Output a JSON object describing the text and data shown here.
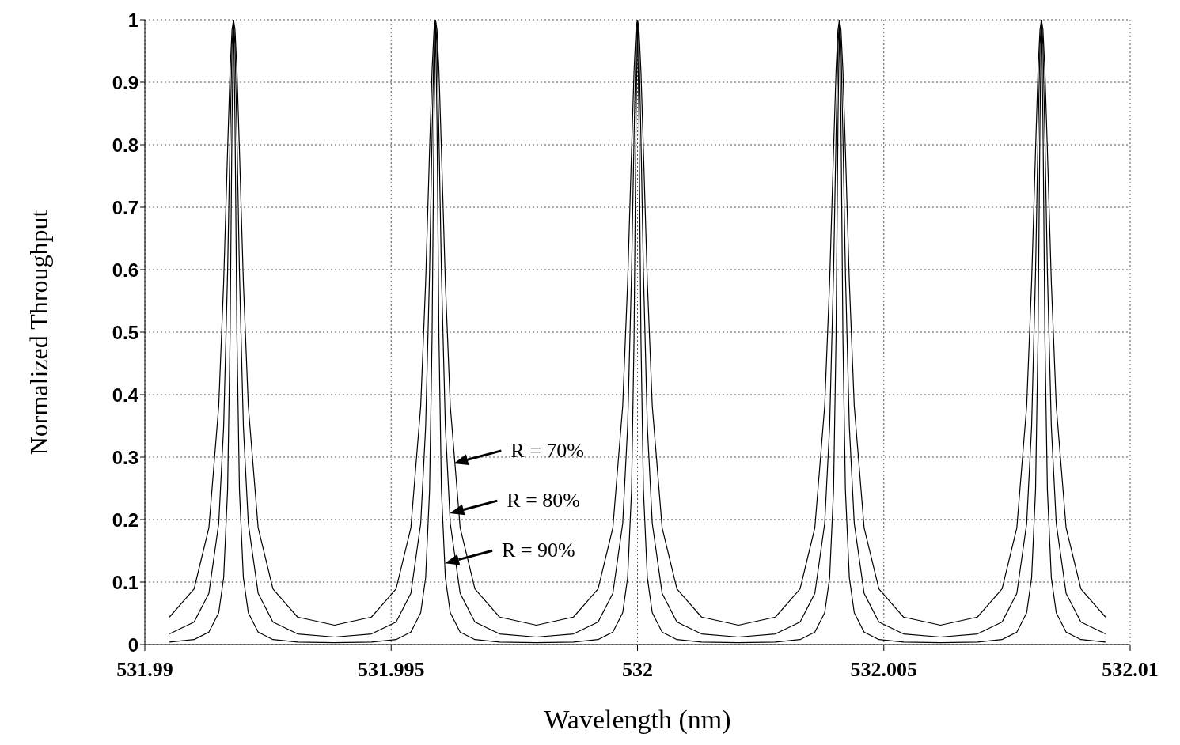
{
  "chart_data": {
    "type": "line",
    "xlabel": "Wavelength (nm)",
    "ylabel": "Normalized Throughput",
    "x": [
      531.9905,
      531.991,
      531.9913,
      531.9915,
      531.9916,
      531.99168,
      531.99173,
      531.99177,
      531.9918,
      531.99183,
      531.99187,
      531.99192,
      531.992,
      531.9921,
      531.9923,
      531.9926,
      531.9931,
      531.99385,
      531.9946,
      531.9951,
      531.9954,
      531.9956,
      531.9957,
      531.99578,
      531.99583,
      531.99587,
      531.9959,
      531.99593,
      531.99597,
      531.99602,
      531.9961,
      531.9962,
      531.9964,
      531.9967,
      531.9972,
      531.99795,
      531.9987,
      531.9992,
      531.9995,
      531.9997,
      531.9998,
      531.99988,
      531.99993,
      531.99997,
      532,
      532.00003,
      532.00007,
      532.00012,
      532.0002,
      532.0003,
      532.0005,
      532.0008,
      532.0013,
      532.00205,
      532.0028,
      532.0033,
      532.0036,
      532.0038,
      532.0039,
      532.00398,
      532.00403,
      532.00407,
      532.0041,
      532.00413,
      532.00417,
      532.00422,
      532.0043,
      532.0044,
      532.0046,
      532.0049,
      532.0054,
      532.00615,
      532.0069,
      532.0074,
      532.0077,
      532.0079,
      532.008,
      532.00808,
      532.00813,
      532.00817,
      532.0082,
      532.00823,
      532.00827,
      532.00832,
      532.0084,
      532.0085,
      532.0087,
      532.009,
      532.0095
    ],
    "series": [
      {
        "color": "#000000",
        "values": [
          0.044,
          0.089,
          0.187,
          0.382,
          0.58,
          0.792,
          0.918,
          0.984,
          1,
          0.984,
          0.918,
          0.792,
          0.58,
          0.382,
          0.187,
          0.089,
          0.044,
          0.031,
          0.044,
          0.089,
          0.187,
          0.382,
          0.58,
          0.792,
          0.918,
          0.984,
          1,
          0.984,
          0.918,
          0.792,
          0.58,
          0.382,
          0.187,
          0.089,
          0.044,
          0.031,
          0.044,
          0.089,
          0.187,
          0.382,
          0.58,
          0.792,
          0.918,
          0.984,
          1,
          0.984,
          0.918,
          0.792,
          0.58,
          0.382,
          0.187,
          0.089,
          0.044,
          0.031,
          0.044,
          0.089,
          0.187,
          0.382,
          0.58,
          0.792,
          0.918,
          0.984,
          1,
          0.984,
          0.918,
          0.792,
          0.58,
          0.382,
          0.187,
          0.089,
          0.044,
          0.031,
          0.044,
          0.089,
          0.187,
          0.382,
          0.58,
          0.792,
          0.918,
          0.984,
          1,
          0.984,
          0.918,
          0.792,
          0.58,
          0.382,
          0.187,
          0.089,
          0.044
        ]
      },
      {
        "color": "#000000",
        "values": [
          0.017,
          0.036,
          0.082,
          0.194,
          0.349,
          0.597,
          0.813,
          0.96,
          1,
          0.96,
          0.813,
          0.597,
          0.349,
          0.194,
          0.082,
          0.036,
          0.017,
          0.012,
          0.017,
          0.036,
          0.082,
          0.194,
          0.349,
          0.597,
          0.813,
          0.96,
          1,
          0.96,
          0.813,
          0.597,
          0.349,
          0.194,
          0.082,
          0.036,
          0.017,
          0.012,
          0.017,
          0.036,
          0.082,
          0.194,
          0.349,
          0.597,
          0.813,
          0.96,
          1,
          0.96,
          0.813,
          0.597,
          0.349,
          0.194,
          0.082,
          0.036,
          0.017,
          0.012,
          0.017,
          0.036,
          0.082,
          0.194,
          0.349,
          0.597,
          0.813,
          0.96,
          1,
          0.96,
          0.813,
          0.597,
          0.349,
          0.194,
          0.082,
          0.036,
          0.017,
          0.012,
          0.017,
          0.036,
          0.082,
          0.194,
          0.349,
          0.597,
          0.813,
          0.96,
          1,
          0.96,
          0.813,
          0.597,
          0.349,
          0.194,
          0.082,
          0.036,
          0.017
        ]
      },
      {
        "color": "#000000",
        "values": [
          0.004,
          0.008,
          0.02,
          0.051,
          0.107,
          0.248,
          0.491,
          0.84,
          1,
          0.84,
          0.491,
          0.248,
          0.107,
          0.051,
          0.02,
          0.008,
          0.004,
          0.003,
          0.004,
          0.008,
          0.02,
          0.051,
          0.107,
          0.248,
          0.491,
          0.84,
          1,
          0.84,
          0.491,
          0.248,
          0.107,
          0.051,
          0.02,
          0.008,
          0.004,
          0.003,
          0.004,
          0.008,
          0.02,
          0.051,
          0.107,
          0.248,
          0.491,
          0.84,
          1,
          0.84,
          0.491,
          0.248,
          0.107,
          0.051,
          0.02,
          0.008,
          0.004,
          0.003,
          0.004,
          0.008,
          0.02,
          0.051,
          0.107,
          0.248,
          0.491,
          0.84,
          1,
          0.84,
          0.491,
          0.248,
          0.107,
          0.051,
          0.02,
          0.008,
          0.004,
          0.003,
          0.004,
          0.008,
          0.02,
          0.051,
          0.107,
          0.248,
          0.491,
          0.84,
          1,
          0.84,
          0.491,
          0.248,
          0.107,
          0.051,
          0.02,
          0.008,
          0.004
        ]
      }
    ],
    "xlim": [
      531.99,
      532.01
    ],
    "xticks": [
      531.99,
      531.995,
      532,
      532.005,
      532.01
    ],
    "ylim": [
      0,
      1
    ],
    "yticks": [
      0,
      0.1,
      0.2,
      0.3,
      0.4,
      0.5,
      0.6,
      0.7,
      0.8,
      0.9,
      1
    ],
    "grid": true,
    "marker": "none",
    "line_style": "solid",
    "annotations": [
      {
        "text": "R = 70%",
        "x": 531.99627,
        "y": 0.29
      },
      {
        "text": "R = 80%",
        "x": 531.99619,
        "y": 0.21
      },
      {
        "text": "R = 90%",
        "x": 531.99609,
        "y": 0.13
      }
    ]
  }
}
